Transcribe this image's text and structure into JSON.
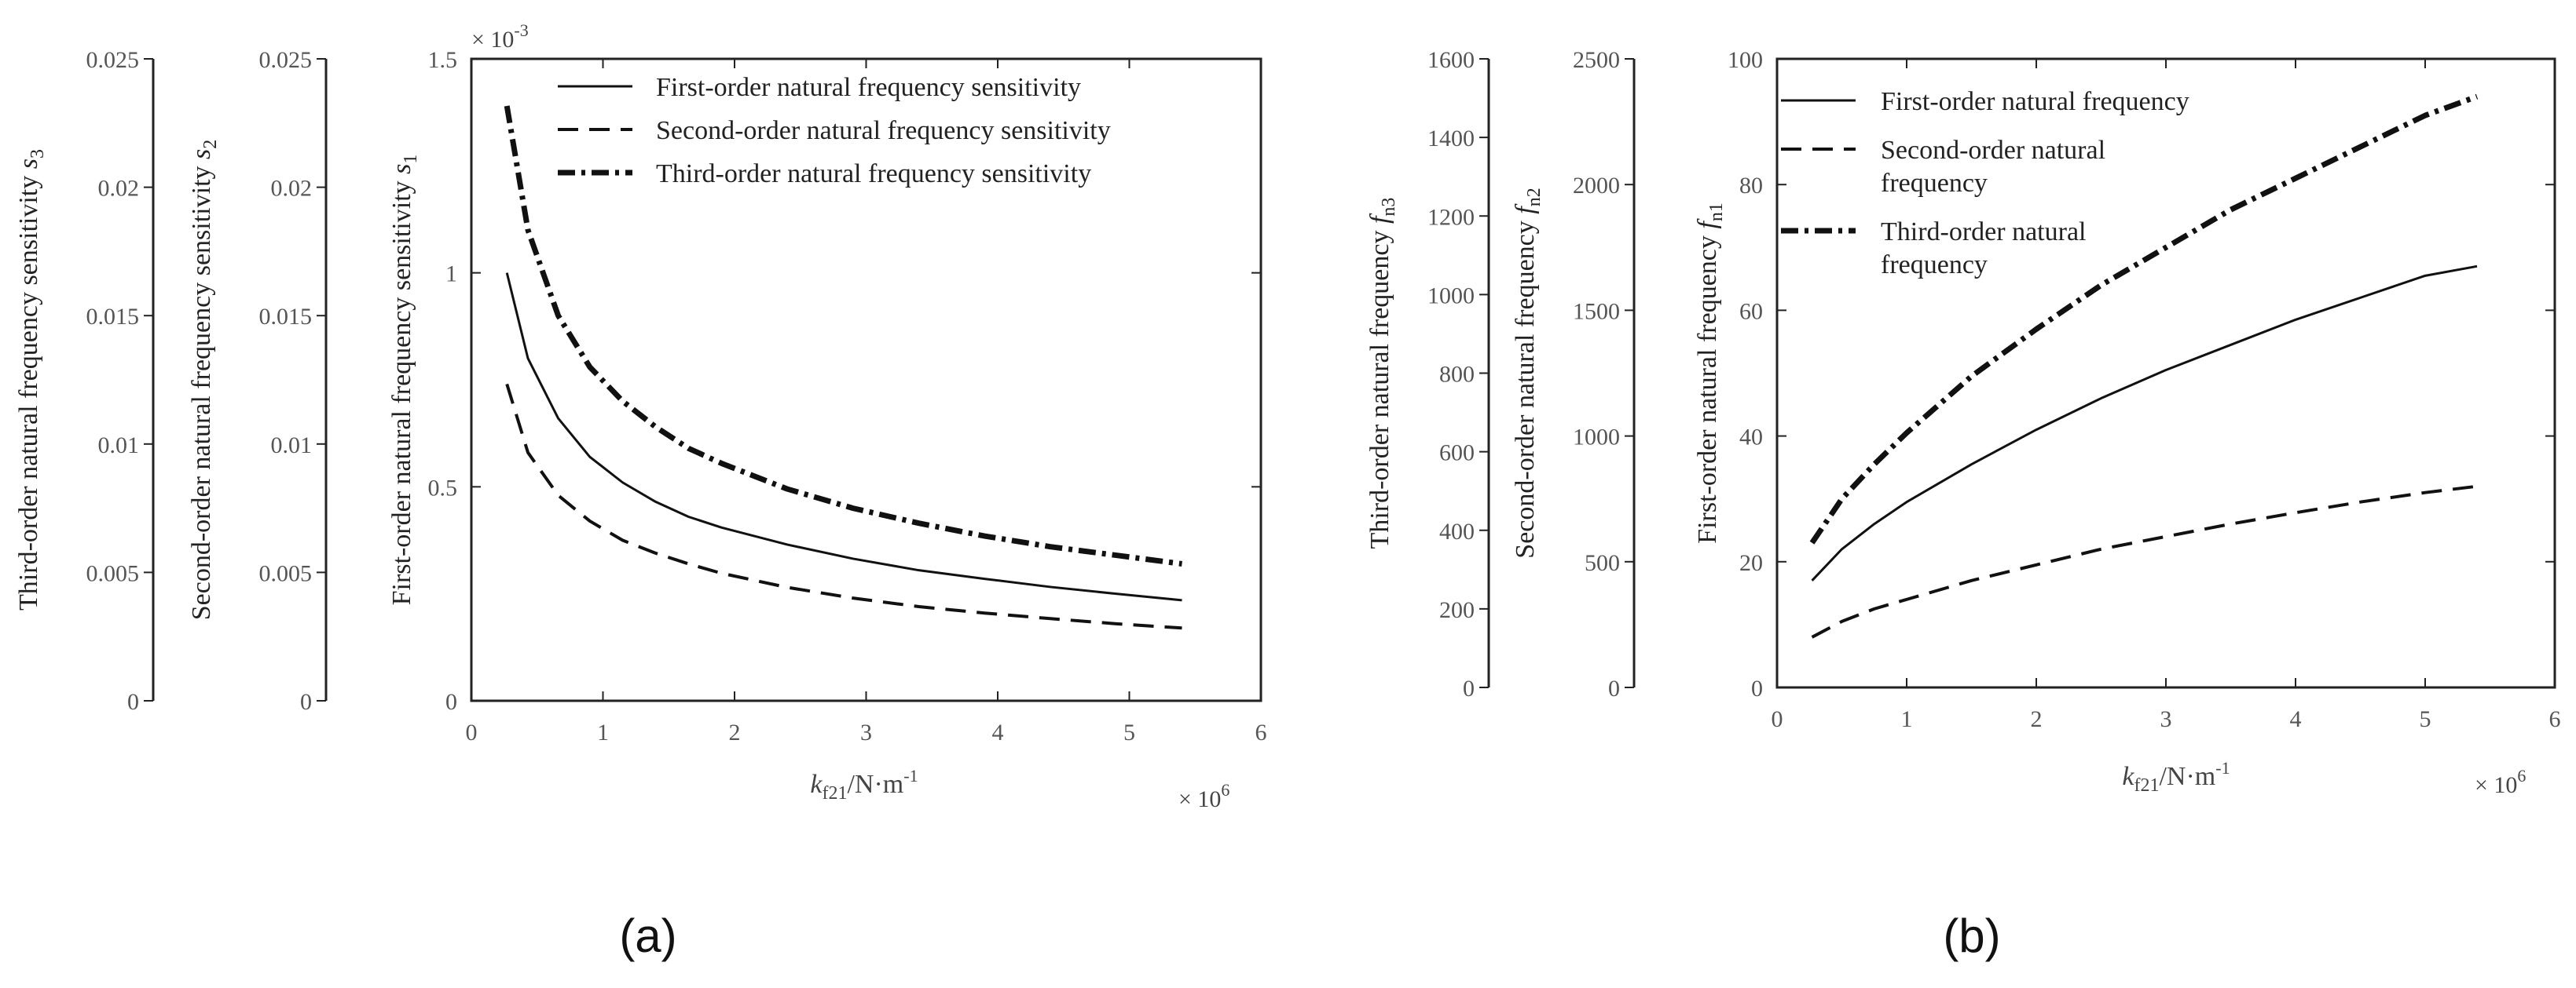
{
  "chart_data": [
    {
      "panel": "(a)",
      "type": "line",
      "xlabel": {
        "main": "k",
        "sub": "f21",
        "rest": "/N·m",
        "sup": "-1"
      },
      "xticks": [
        "0",
        "1",
        "2",
        "3",
        "4",
        "5",
        "6"
      ],
      "xlim": [
        0,
        6
      ],
      "x_multiplier": {
        "symbol": "×",
        "base": "10",
        "exp": "6"
      },
      "y_multiplier": {
        "symbol": "×",
        "base": "10",
        "exp": "-3"
      },
      "axes": [
        {
          "label": "First-order natural frequency sensitivity",
          "symbol": "s",
          "sub": "1",
          "ylim": [
            0,
            1.5
          ],
          "ticks": [
            "0",
            "0.5",
            "1",
            "1.5"
          ]
        },
        {
          "label": "Second-order natural frequency sensitivity",
          "symbol": "s",
          "sub": "2",
          "ylim": [
            0,
            0.025
          ],
          "ticks": [
            "0",
            "0.005",
            "0.01",
            "0.015",
            "0.02",
            "0.025"
          ]
        },
        {
          "label": "Third-order natural frequency sensitivity",
          "symbol": "s",
          "sub": "3",
          "ylim": [
            0,
            0.025
          ],
          "ticks": [
            "0",
            "0.005",
            "0.01",
            "0.015",
            "0.02",
            "0.025"
          ]
        }
      ],
      "x": [
        0.27,
        0.43,
        0.66,
        0.9,
        1.15,
        1.4,
        1.65,
        1.9,
        2.4,
        2.9,
        3.4,
        3.9,
        4.4,
        4.9,
        5.4
      ],
      "series": [
        {
          "name": "First-order natural frequency sensitivity",
          "style": "solid",
          "axis": 0,
          "values": [
            1.0,
            0.8,
            0.66,
            0.57,
            0.51,
            0.465,
            0.43,
            0.405,
            0.365,
            0.332,
            0.305,
            0.285,
            0.266,
            0.25,
            0.235
          ]
        },
        {
          "name": "Second-order natural frequency sensitivity",
          "style": "dashed",
          "axis": 0,
          "values": [
            0.74,
            0.58,
            0.48,
            0.42,
            0.375,
            0.345,
            0.32,
            0.298,
            0.265,
            0.24,
            0.22,
            0.205,
            0.192,
            0.18,
            0.17
          ]
        },
        {
          "name": "Third-order natural frequency sensitivity",
          "style": "dashdot",
          "axis": 0,
          "values": [
            1.39,
            1.1,
            0.9,
            0.78,
            0.7,
            0.64,
            0.59,
            0.555,
            0.495,
            0.45,
            0.415,
            0.385,
            0.36,
            0.34,
            0.32
          ]
        }
      ]
    },
    {
      "panel": "(b)",
      "type": "line",
      "xlabel": {
        "main": "k",
        "sub": "f21",
        "rest": "/N·m",
        "sup": "-1"
      },
      "xticks": [
        "0",
        "1",
        "2",
        "3",
        "4",
        "5",
        "6"
      ],
      "xlim": [
        0,
        6
      ],
      "x_multiplier": {
        "symbol": "×",
        "base": "10",
        "exp": "6"
      },
      "axes": [
        {
          "label": "First-order natural frequency",
          "symbol": "f",
          "sub": "n1",
          "ylim": [
            0,
            100
          ],
          "ticks": [
            "0",
            "20",
            "40",
            "60",
            "80",
            "100"
          ]
        },
        {
          "label": "Second-order natural frequency",
          "symbol": "f",
          "sub": "n2",
          "ylim": [
            0,
            2500
          ],
          "ticks": [
            "0",
            "500",
            "1000",
            "1500",
            "2000",
            "2500"
          ]
        },
        {
          "label": "Third-order natural frequency",
          "symbol": "f",
          "sub": "n3",
          "ylim": [
            0,
            1600
          ],
          "ticks": [
            "0",
            "200",
            "400",
            "600",
            "800",
            "1000",
            "1200",
            "1400",
            "1600"
          ]
        }
      ],
      "x": [
        0.27,
        0.5,
        0.75,
        1.0,
        1.5,
        2.0,
        2.5,
        3.0,
        3.5,
        4.0,
        4.5,
        5.0,
        5.4
      ],
      "series": [
        {
          "name": "First-order natural frequency",
          "style": "solid",
          "axis": 0,
          "values": [
            17,
            22,
            26,
            29.5,
            35.5,
            41,
            46,
            50.5,
            54.5,
            58.5,
            62,
            65.5,
            67
          ]
        },
        {
          "name": "Second-order natural frequency",
          "style": "dashed",
          "axis": 0,
          "values": [
            8,
            10.5,
            12.5,
            14,
            17,
            19.5,
            22,
            24,
            26,
            27.8,
            29.5,
            31,
            32
          ]
        },
        {
          "name": "Third-order natural frequency",
          "style": "dashdot",
          "axis": 0,
          "values": [
            23,
            30,
            35.5,
            40.5,
            49.5,
            57,
            64,
            70,
            76,
            81,
            86,
            91,
            94
          ]
        }
      ],
      "legend": [
        [
          "First-order natural frequency"
        ],
        [
          "Second-order natural",
          "frequency"
        ],
        [
          "Third-order natural",
          "frequency"
        ]
      ]
    }
  ],
  "panel_labels": [
    "(a)",
    "(b)"
  ]
}
